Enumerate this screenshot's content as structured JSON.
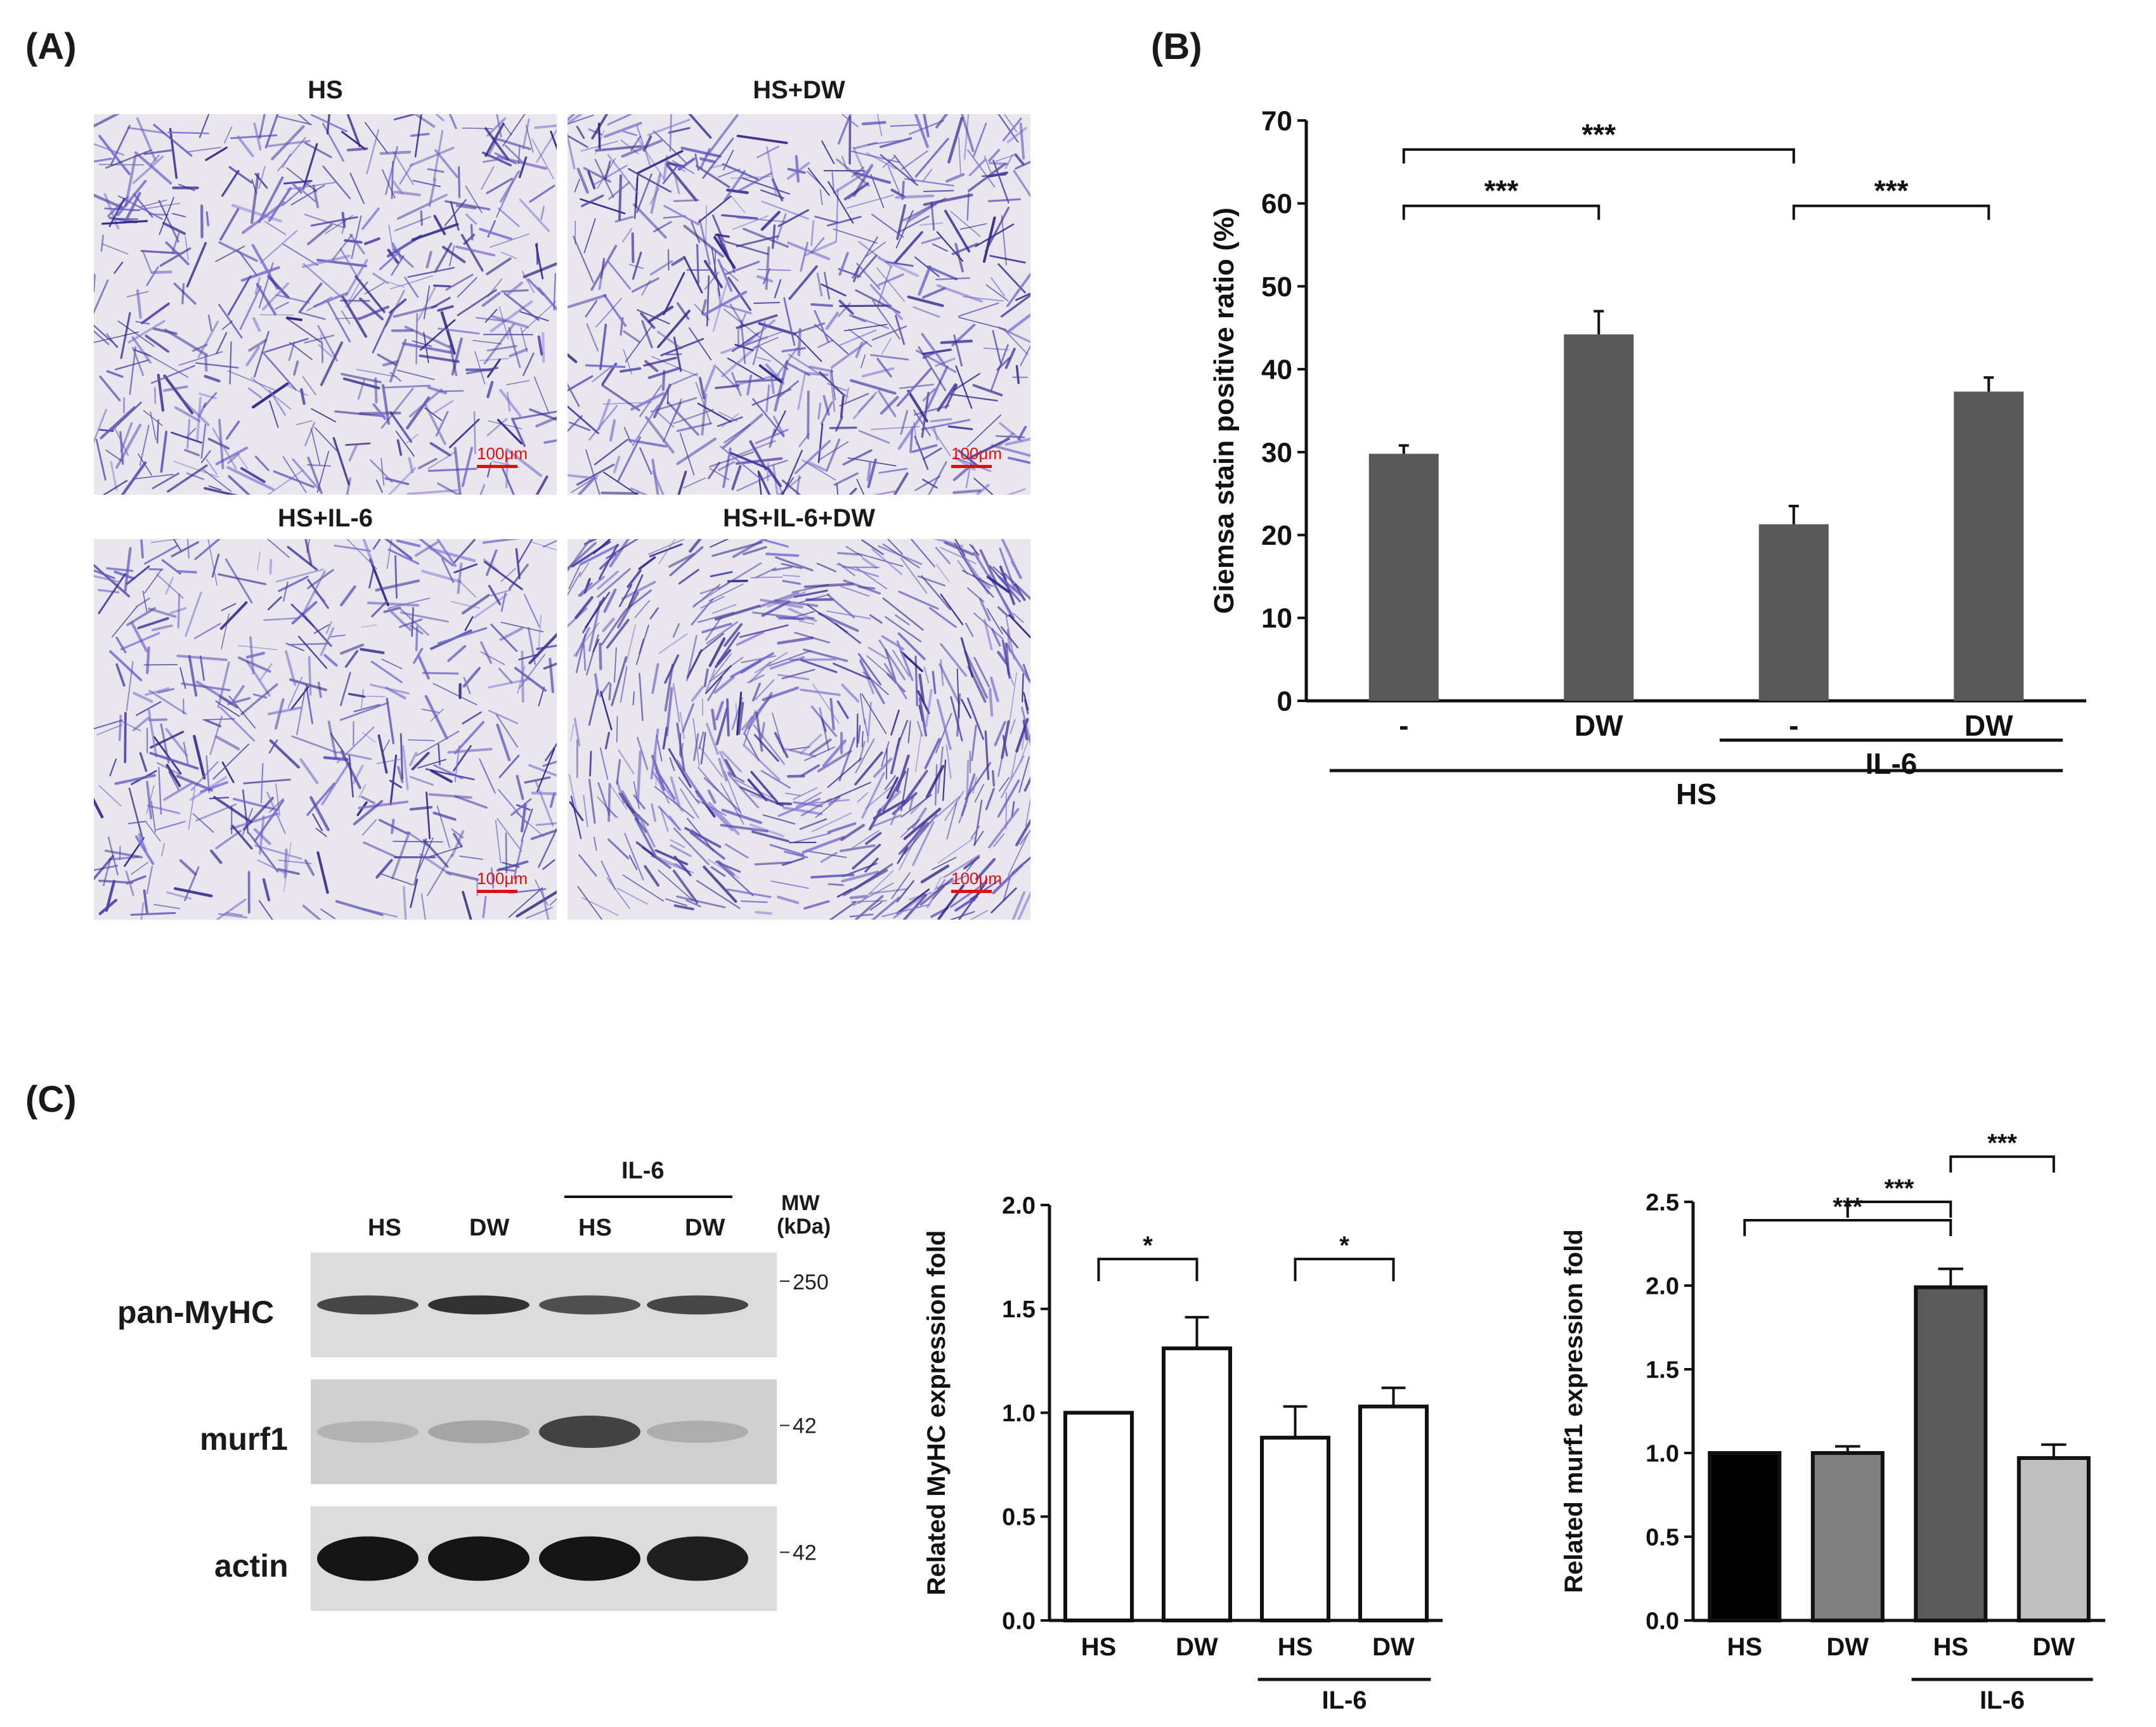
{
  "panel_labels": {
    "a": "(A)",
    "b": "(B)",
    "c": "(C)"
  },
  "micrographs": [
    {
      "title": "HS",
      "scale": "100μm",
      "density": 0.95
    },
    {
      "title": "HS+DW",
      "scale": "100μm",
      "density": 1.1
    },
    {
      "title": "HS+IL-6",
      "scale": "100μm",
      "density": 0.85
    },
    {
      "title": "HS+IL-6+DW",
      "scale": "100μm",
      "density": 1.2
    }
  ],
  "western_blot": {
    "group_label": "IL-6",
    "lanes": [
      "HS",
      "DW",
      "HS",
      "DW"
    ],
    "mw_header": [
      "MW",
      "(kDa)"
    ],
    "rows": [
      {
        "label": "pan-MyHC",
        "marker": "250",
        "intensity": [
          0.75,
          0.85,
          0.7,
          0.75
        ]
      },
      {
        "label": "murf1",
        "marker": "42",
        "intensity": [
          0.15,
          0.22,
          0.75,
          0.18
        ]
      },
      {
        "label": "actin",
        "marker": "42",
        "intensity": [
          1.0,
          1.0,
          1.0,
          0.95
        ]
      }
    ]
  },
  "chart_data": [
    {
      "type": "bar",
      "ylabel": "Giemsa stain positive ratio (%)",
      "categories": [
        "-",
        "DW",
        "-",
        "DW"
      ],
      "values": [
        29.8,
        44.2,
        21.3,
        37.3
      ],
      "errors": [
        1.0,
        2.8,
        2.2,
        1.7
      ],
      "ylim": [
        0,
        70
      ],
      "yticks": [
        0,
        10,
        20,
        30,
        40,
        50,
        60,
        70
      ],
      "bar_color": "#595959",
      "group_labels": [
        {
          "label": "IL-6",
          "from": 2,
          "to": 3
        },
        {
          "label": "HS",
          "from": 0,
          "to": 3
        }
      ],
      "significance": [
        {
          "from": 0,
          "to": 2,
          "label": "***"
        },
        {
          "from": 0,
          "to": 1,
          "label": "***"
        },
        {
          "from": 2,
          "to": 3,
          "label": "***"
        }
      ]
    },
    {
      "type": "bar",
      "ylabel": "Related MyHC expression fold",
      "categories": [
        "HS",
        "DW",
        "HS",
        "DW"
      ],
      "values": [
        1.0,
        1.31,
        0.88,
        1.03
      ],
      "errors": [
        0,
        0.15,
        0.15,
        0.09
      ],
      "ylim": [
        0,
        2.0
      ],
      "yticks": [
        0.0,
        0.5,
        1.0,
        1.5,
        2.0
      ],
      "bar_colors": [
        "#ffffff",
        "#ffffff",
        "#ffffff",
        "#ffffff"
      ],
      "group_labels": [
        {
          "label": "IL-6",
          "from": 2,
          "to": 3
        }
      ],
      "significance": [
        {
          "from": 0,
          "to": 1,
          "label": "*"
        },
        {
          "from": 2,
          "to": 3,
          "label": "*"
        }
      ]
    },
    {
      "type": "bar",
      "ylabel": "Related murf1 expression fold",
      "categories": [
        "HS",
        "DW",
        "HS",
        "DW"
      ],
      "values": [
        1.0,
        1.0,
        1.99,
        0.97
      ],
      "errors": [
        0,
        0.04,
        0.11,
        0.08
      ],
      "ylim": [
        0,
        2.5
      ],
      "yticks": [
        0.0,
        0.5,
        1.0,
        1.5,
        2.0,
        2.5
      ],
      "bar_colors": [
        "#000000",
        "#808080",
        "#5a5a5a",
        "#c0c0c0"
      ],
      "group_labels": [
        {
          "label": "IL-6",
          "from": 2,
          "to": 3
        }
      ],
      "significance": [
        {
          "from": 0,
          "to": 2,
          "label": "***"
        },
        {
          "from": 1,
          "to": 2,
          "label": "***"
        },
        {
          "from": 2,
          "to": 3,
          "label": "***"
        }
      ]
    }
  ]
}
